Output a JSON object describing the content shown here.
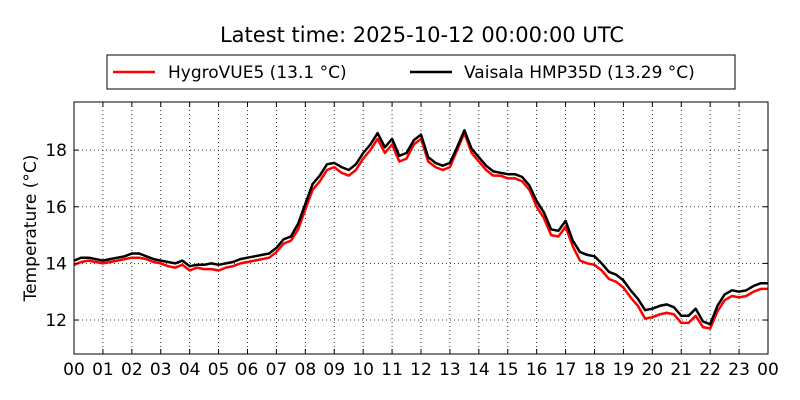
{
  "chart_data": {
    "type": "line",
    "title": "Latest time: 2025-10-12 00:00:00 UTC",
    "xlabel": "",
    "ylabel": "Temperature (°C)",
    "x_unit": "hour of day (UTC)",
    "xlim": [
      0,
      24
    ],
    "ylim": [
      10.8,
      19.7
    ],
    "x_ticks": [
      0,
      1,
      2,
      3,
      4,
      5,
      6,
      7,
      8,
      9,
      10,
      11,
      12,
      13,
      14,
      15,
      16,
      17,
      18,
      19,
      20,
      21,
      22,
      23,
      24
    ],
    "x_tick_labels": [
      "00",
      "01",
      "02",
      "03",
      "04",
      "05",
      "06",
      "07",
      "08",
      "09",
      "10",
      "11",
      "12",
      "13",
      "14",
      "15",
      "16",
      "17",
      "18",
      "19",
      "20",
      "21",
      "22",
      "23",
      "00"
    ],
    "y_ticks": [
      12,
      14,
      16,
      18
    ],
    "y_tick_labels": [
      "12",
      "14",
      "16",
      "18"
    ],
    "grid": true,
    "legend_position": "top",
    "series": [
      {
        "name": "HygroVUE5 (13.1 °C)",
        "color": "#ff0000",
        "x": [
          0,
          0.25,
          0.5,
          0.75,
          1,
          1.25,
          1.5,
          1.75,
          2,
          2.25,
          2.5,
          2.75,
          3,
          3.25,
          3.5,
          3.75,
          4,
          4.25,
          4.5,
          4.75,
          5,
          5.25,
          5.5,
          5.75,
          6,
          6.25,
          6.5,
          6.75,
          7,
          7.25,
          7.5,
          7.75,
          8,
          8.25,
          8.5,
          8.75,
          9,
          9.25,
          9.5,
          9.75,
          10,
          10.25,
          10.5,
          10.75,
          11,
          11.25,
          11.5,
          11.75,
          12,
          12.25,
          12.5,
          12.75,
          13,
          13.25,
          13.5,
          13.75,
          14,
          14.25,
          14.5,
          14.75,
          15,
          15.25,
          15.5,
          15.75,
          16,
          16.25,
          16.5,
          16.75,
          17,
          17.25,
          17.5,
          17.75,
          18,
          18.25,
          18.5,
          18.75,
          19,
          19.25,
          19.5,
          19.75,
          20,
          20.25,
          20.5,
          20.75,
          21,
          21.25,
          21.5,
          21.75,
          22,
          22.25,
          22.5,
          22.75,
          23,
          23.25,
          23.5,
          23.75,
          24
        ],
        "y": [
          13.95,
          14.05,
          14.1,
          14.05,
          14.0,
          14.05,
          14.1,
          14.15,
          14.2,
          14.2,
          14.15,
          14.05,
          14.0,
          13.9,
          13.85,
          13.95,
          13.75,
          13.85,
          13.8,
          13.8,
          13.75,
          13.85,
          13.9,
          14.0,
          14.05,
          14.1,
          14.15,
          14.2,
          14.4,
          14.7,
          14.8,
          15.2,
          15.9,
          16.6,
          16.9,
          17.3,
          17.4,
          17.2,
          17.1,
          17.3,
          17.7,
          18.0,
          18.4,
          17.9,
          18.2,
          17.6,
          17.7,
          18.2,
          18.4,
          17.6,
          17.4,
          17.3,
          17.4,
          18.0,
          18.6,
          17.9,
          17.6,
          17.3,
          17.1,
          17.1,
          17.0,
          17.0,
          16.9,
          16.6,
          16.0,
          15.6,
          15.0,
          14.95,
          15.3,
          14.6,
          14.1,
          14.0,
          13.95,
          13.75,
          13.45,
          13.35,
          13.15,
          12.8,
          12.5,
          12.05,
          12.1,
          12.2,
          12.25,
          12.2,
          11.9,
          11.9,
          12.15,
          11.75,
          11.7,
          12.3,
          12.7,
          12.85,
          12.8,
          12.85,
          13.0,
          13.1,
          13.1
        ],
        "last_value": 13.1
      },
      {
        "name": "Vaisala HMP35D (13.29 °C)",
        "color": "#000000",
        "x": [
          0,
          0.25,
          0.5,
          0.75,
          1,
          1.25,
          1.5,
          1.75,
          2,
          2.25,
          2.5,
          2.75,
          3,
          3.25,
          3.5,
          3.75,
          4,
          4.25,
          4.5,
          4.75,
          5,
          5.25,
          5.5,
          5.75,
          6,
          6.25,
          6.5,
          6.75,
          7,
          7.25,
          7.5,
          7.75,
          8,
          8.25,
          8.5,
          8.75,
          9,
          9.25,
          9.5,
          9.75,
          10,
          10.25,
          10.5,
          10.75,
          11,
          11.25,
          11.5,
          11.75,
          12,
          12.25,
          12.5,
          12.75,
          13,
          13.25,
          13.5,
          13.75,
          14,
          14.25,
          14.5,
          14.75,
          15,
          15.25,
          15.5,
          15.75,
          16,
          16.25,
          16.5,
          16.75,
          17,
          17.25,
          17.5,
          17.75,
          18,
          18.25,
          18.5,
          18.75,
          19,
          19.25,
          19.5,
          19.75,
          20,
          20.25,
          20.5,
          20.75,
          21,
          21.25,
          21.5,
          21.75,
          22,
          22.25,
          22.5,
          22.75,
          23,
          23.25,
          23.5,
          23.75,
          24
        ],
        "y": [
          14.1,
          14.2,
          14.2,
          14.15,
          14.1,
          14.15,
          14.2,
          14.25,
          14.35,
          14.35,
          14.25,
          14.15,
          14.1,
          14.05,
          14.0,
          14.1,
          13.9,
          13.95,
          13.95,
          14.0,
          13.95,
          14.0,
          14.05,
          14.15,
          14.2,
          14.25,
          14.3,
          14.35,
          14.55,
          14.85,
          14.95,
          15.4,
          16.1,
          16.8,
          17.1,
          17.5,
          17.55,
          17.4,
          17.3,
          17.5,
          17.9,
          18.2,
          18.6,
          18.1,
          18.4,
          17.8,
          17.9,
          18.35,
          18.55,
          17.75,
          17.55,
          17.45,
          17.55,
          18.1,
          18.7,
          18.05,
          17.75,
          17.45,
          17.25,
          17.2,
          17.15,
          17.15,
          17.05,
          16.75,
          16.2,
          15.8,
          15.2,
          15.15,
          15.5,
          14.8,
          14.4,
          14.3,
          14.25,
          14.0,
          13.7,
          13.6,
          13.4,
          13.05,
          12.75,
          12.35,
          12.4,
          12.5,
          12.55,
          12.45,
          12.15,
          12.15,
          12.4,
          11.95,
          11.85,
          12.5,
          12.9,
          13.05,
          13.0,
          13.05,
          13.2,
          13.3,
          13.3
        ],
        "last_value": 13.29
      }
    ]
  }
}
